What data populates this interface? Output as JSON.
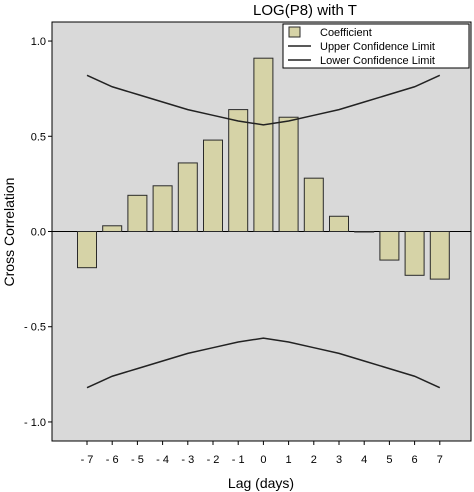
{
  "chart_data": {
    "type": "bar",
    "title": "LOG(P8) with T",
    "xlabel": "Lag (days)",
    "ylabel": "Cross Correlation",
    "categories": [
      "-7",
      "-6",
      "-5",
      "-4",
      "-3",
      "-2",
      "-1",
      "0",
      "1",
      "2",
      "3",
      "4",
      "5",
      "6",
      "7"
    ],
    "x": [
      -7,
      -6,
      -5,
      -4,
      -3,
      -2,
      -1,
      0,
      1,
      2,
      3,
      4,
      5,
      6,
      7
    ],
    "series": [
      {
        "name": "Coefficient",
        "values": [
          -0.19,
          0.03,
          0.19,
          0.24,
          0.36,
          0.48,
          0.64,
          0.91,
          0.6,
          0.28,
          0.08,
          0.0,
          -0.15,
          -0.23,
          -0.25
        ]
      },
      {
        "name": "Upper Confidence Limit",
        "values": [
          0.82,
          0.76,
          0.72,
          0.68,
          0.64,
          0.61,
          0.58,
          0.56,
          0.58,
          0.61,
          0.64,
          0.68,
          0.72,
          0.76,
          0.82
        ]
      },
      {
        "name": "Lower Confidence Limit",
        "values": [
          -0.82,
          -0.76,
          -0.72,
          -0.68,
          -0.64,
          -0.61,
          -0.58,
          -0.56,
          -0.58,
          -0.61,
          -0.64,
          -0.68,
          -0.72,
          -0.76,
          -0.82
        ]
      }
    ],
    "ylim": [
      -1.1,
      1.1
    ],
    "yticks": [
      -1.0,
      -0.5,
      0.0,
      0.5,
      1.0
    ],
    "ytick_labels": [
      "- 1.0",
      "- 0.5",
      "0.0",
      "0.5",
      "1.0"
    ],
    "xtick_labels": [
      "- 7",
      "- 6",
      "- 5",
      "- 4",
      "- 3",
      "- 2",
      "- 1",
      "0",
      "1",
      "2",
      "3",
      "4",
      "5",
      "6",
      "7"
    ],
    "grid": false,
    "legend": "top-right",
    "colors": {
      "plot_background": "#d9d9d9",
      "bar_fill": "#d6d3a7",
      "bar_stroke": "#2a2a2a",
      "line": "#222222"
    }
  }
}
